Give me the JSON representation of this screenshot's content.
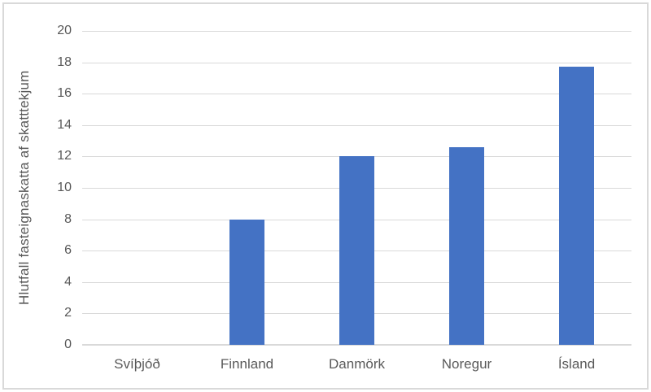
{
  "chart_data": {
    "type": "bar",
    "categories": [
      "Svíþjóð",
      "Finnland",
      "Danmörk",
      "Noregur",
      "Ísland"
    ],
    "values": [
      0,
      8,
      12,
      12.6,
      17.7
    ],
    "ylabel": "Hlutfall fasteignaskatta af skatttekjum",
    "xlabel": "",
    "ylim": [
      0,
      20
    ],
    "yticks": [
      0,
      2,
      4,
      6,
      8,
      10,
      12,
      14,
      16,
      18,
      20
    ],
    "grid": true,
    "legend_position": "none",
    "colors": {
      "bar": "#4472c4",
      "gridline": "#d9d9d9",
      "axis_line": "#d9d9d9",
      "text": "#595959",
      "chart_border": "#d9d9d9",
      "background": "#ffffff"
    }
  }
}
